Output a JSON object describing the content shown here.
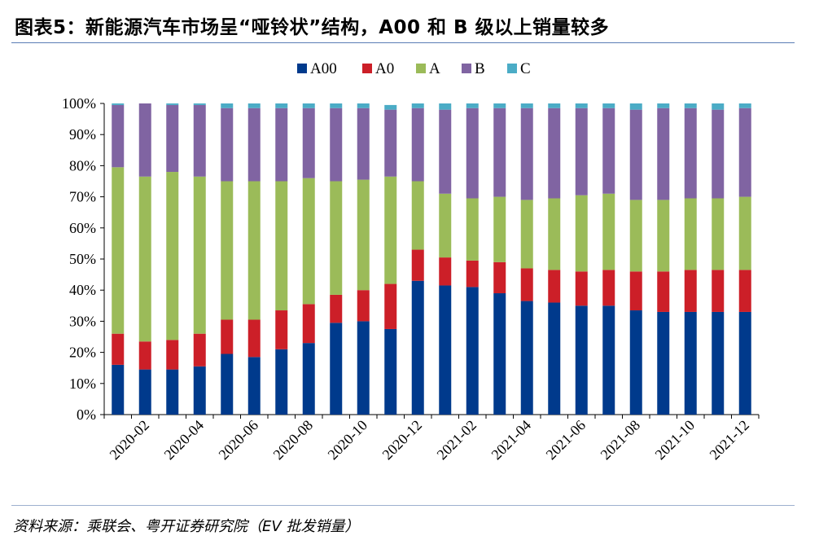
{
  "title": "图表5：新能源汽车市场呈“哑铃状”结构，A00 和 B 级以上销量较多",
  "source": "资料来源：乘联会、粤开证券研究院（EV 批发销量）",
  "chart_data": {
    "type": "bar",
    "stacked": true,
    "categories": [
      "2020-01",
      "2020-02",
      "2020-03",
      "2020-04",
      "2020-05",
      "2020-06",
      "2020-07",
      "2020-08",
      "2020-09",
      "2020-10",
      "2020-11",
      "2020-12",
      "2021-01",
      "2021-02",
      "2021-03",
      "2021-04",
      "2021-05",
      "2021-06",
      "2021-07",
      "2021-08",
      "2021-09",
      "2021-10",
      "2021-11",
      "2021-12"
    ],
    "xticks": [
      "2020-02",
      "2020-04",
      "2020-06",
      "2020-08",
      "2020-10",
      "2020-12",
      "2021-02",
      "2021-04",
      "2021-06",
      "2021-08",
      "2021-10",
      "2021-12"
    ],
    "yticks": [
      "0%",
      "10%",
      "20%",
      "30%",
      "40%",
      "50%",
      "60%",
      "70%",
      "80%",
      "90%",
      "100%"
    ],
    "ylim": [
      0,
      100
    ],
    "legend_position": "top",
    "series": [
      {
        "name": "A00",
        "color": "#003a8c",
        "values": [
          16,
          14.5,
          14.5,
          15.5,
          19.5,
          18.5,
          21,
          23,
          29.5,
          30,
          27.5,
          43,
          41.5,
          41,
          39,
          36.5,
          36,
          35,
          35,
          33.5,
          33,
          33,
          33,
          33
        ]
      },
      {
        "name": "A0",
        "color": "#cc1f28",
        "values": [
          10,
          9,
          9.5,
          10.5,
          11,
          12,
          12.5,
          12.5,
          9,
          10,
          14.5,
          10,
          9,
          8.5,
          10,
          10.5,
          10.5,
          11,
          11.5,
          12.5,
          13,
          13.5,
          13.5,
          13.5
        ]
      },
      {
        "name": "A",
        "color": "#9bbb59",
        "values": [
          53.5,
          53,
          54,
          50.5,
          44.5,
          44.5,
          41.5,
          40.5,
          36.5,
          35.5,
          34.5,
          22,
          20.5,
          20,
          21,
          22,
          23,
          24.5,
          24.5,
          23,
          23,
          23,
          23,
          23.5
        ]
      },
      {
        "name": "B",
        "color": "#8064a2",
        "values": [
          20,
          23.5,
          21.5,
          23,
          23.5,
          23.5,
          23.5,
          22.5,
          23.5,
          23,
          21.5,
          23.5,
          27,
          29,
          28.5,
          29.5,
          29,
          28,
          27.5,
          29,
          29.5,
          29,
          28.5,
          28.5
        ]
      },
      {
        "name": "C",
        "color": "#4bacc6",
        "values": [
          0.5,
          0.5,
          0.5,
          0.5,
          1.5,
          1.5,
          1.5,
          1.5,
          1.5,
          1.5,
          1.5,
          1.5,
          2,
          1.5,
          1.5,
          1.5,
          1.5,
          1.5,
          1.5,
          2,
          1.5,
          1.5,
          2,
          1.5
        ]
      }
    ]
  }
}
